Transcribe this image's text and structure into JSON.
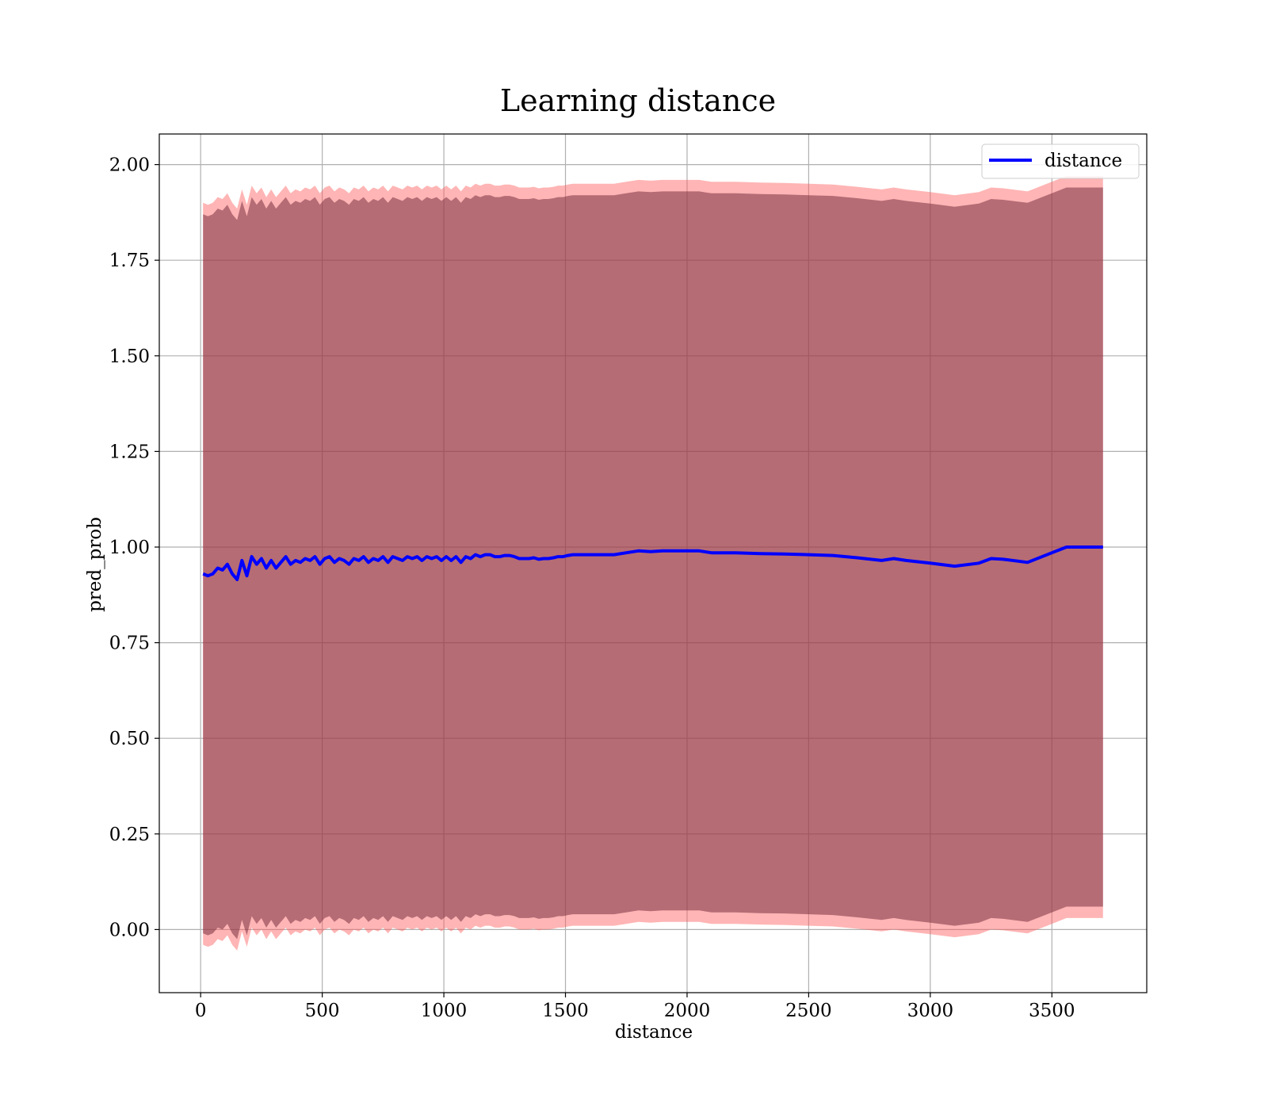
{
  "chart_data": {
    "type": "line",
    "title": "Learning distance",
    "xlabel": "distance",
    "ylabel": "pred_prob",
    "xlim": [
      -170,
      3890
    ],
    "ylim": [
      -0.165,
      2.08
    ],
    "xticks": [
      0,
      500,
      1000,
      1500,
      2000,
      2500,
      3000,
      3500
    ],
    "xtick_labels": [
      "0",
      "500",
      "1000",
      "1500",
      "2000",
      "2500",
      "3000",
      "3500"
    ],
    "yticks": [
      0.0,
      0.25,
      0.5,
      0.75,
      1.0,
      1.25,
      1.5,
      1.75,
      2.0
    ],
    "ytick_labels": [
      "0.00",
      "0.25",
      "0.50",
      "0.75",
      "1.00",
      "1.25",
      "1.50",
      "1.75",
      "2.00"
    ],
    "grid": true,
    "legend_position": "top-right",
    "colors": {
      "line": "#0000ff",
      "band_outer": "#ff5a5a",
      "band_outer_opacity": 0.45,
      "band_inner": "#7a2f3f",
      "band_inner_opacity": 0.55
    },
    "series": [
      {
        "name": "distance",
        "x": [
          10,
          30,
          50,
          70,
          90,
          110,
          130,
          150,
          170,
          190,
          210,
          230,
          250,
          270,
          290,
          310,
          330,
          350,
          370,
          390,
          410,
          430,
          450,
          470,
          490,
          510,
          530,
          550,
          570,
          590,
          610,
          630,
          650,
          670,
          690,
          710,
          730,
          750,
          770,
          790,
          810,
          830,
          850,
          870,
          890,
          910,
          930,
          950,
          970,
          990,
          1010,
          1030,
          1050,
          1070,
          1090,
          1110,
          1130,
          1150,
          1170,
          1190,
          1210,
          1230,
          1250,
          1270,
          1290,
          1310,
          1330,
          1350,
          1370,
          1390,
          1410,
          1430,
          1450,
          1470,
          1490,
          1510,
          1530,
          1550,
          1600,
          1650,
          1700,
          1750,
          1800,
          1850,
          1900,
          1950,
          2000,
          2050,
          2100,
          2200,
          2300,
          2400,
          2500,
          2600,
          2700,
          2800,
          2850,
          2900,
          3000,
          3100,
          3200,
          3250,
          3300,
          3400,
          3500,
          3560,
          3600,
          3710
        ],
        "y": [
          0.93,
          0.925,
          0.93,
          0.945,
          0.94,
          0.955,
          0.93,
          0.915,
          0.965,
          0.925,
          0.975,
          0.955,
          0.97,
          0.945,
          0.965,
          0.945,
          0.96,
          0.975,
          0.955,
          0.965,
          0.96,
          0.97,
          0.965,
          0.975,
          0.955,
          0.97,
          0.975,
          0.96,
          0.97,
          0.965,
          0.955,
          0.97,
          0.965,
          0.975,
          0.96,
          0.97,
          0.965,
          0.975,
          0.96,
          0.975,
          0.97,
          0.965,
          0.975,
          0.97,
          0.975,
          0.965,
          0.975,
          0.97,
          0.975,
          0.965,
          0.975,
          0.965,
          0.975,
          0.96,
          0.975,
          0.97,
          0.98,
          0.975,
          0.98,
          0.98,
          0.975,
          0.975,
          0.978,
          0.978,
          0.975,
          0.97,
          0.97,
          0.97,
          0.972,
          0.968,
          0.97,
          0.97,
          0.972,
          0.975,
          0.975,
          0.978,
          0.98,
          0.98,
          0.98,
          0.98,
          0.98,
          0.985,
          0.99,
          0.988,
          0.99,
          0.99,
          0.99,
          0.99,
          0.985,
          0.985,
          0.983,
          0.982,
          0.98,
          0.978,
          0.972,
          0.965,
          0.97,
          0.965,
          0.958,
          0.95,
          0.958,
          0.97,
          0.968,
          0.96,
          0.985,
          1.0,
          1.0,
          1.0
        ]
      }
    ],
    "band_inner_halfwidth": 0.94,
    "band_outer_halfwidth": 0.97
  }
}
